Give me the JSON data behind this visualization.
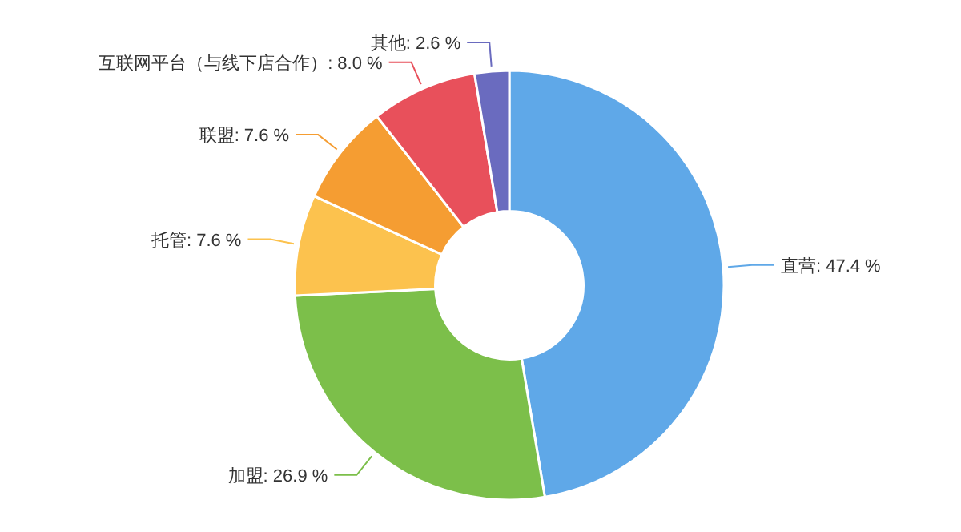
{
  "chart_data": {
    "type": "donut",
    "categories": [
      "直营",
      "加盟",
      "托管",
      "联盟",
      "互联网平台（与线下店合作）",
      "其他"
    ],
    "values": [
      47.4,
      26.9,
      7.6,
      7.6,
      8.0,
      2.6
    ],
    "colors": [
      "#5fa8e8",
      "#7cbf4a",
      "#fcc24e",
      "#f59d32",
      "#e8505b",
      "#6a6bbf"
    ],
    "value_labels": [
      "47.4 %",
      "26.9 %",
      "7.6 %",
      "7.6 %",
      "8.0 %",
      "2.6 %"
    ]
  }
}
